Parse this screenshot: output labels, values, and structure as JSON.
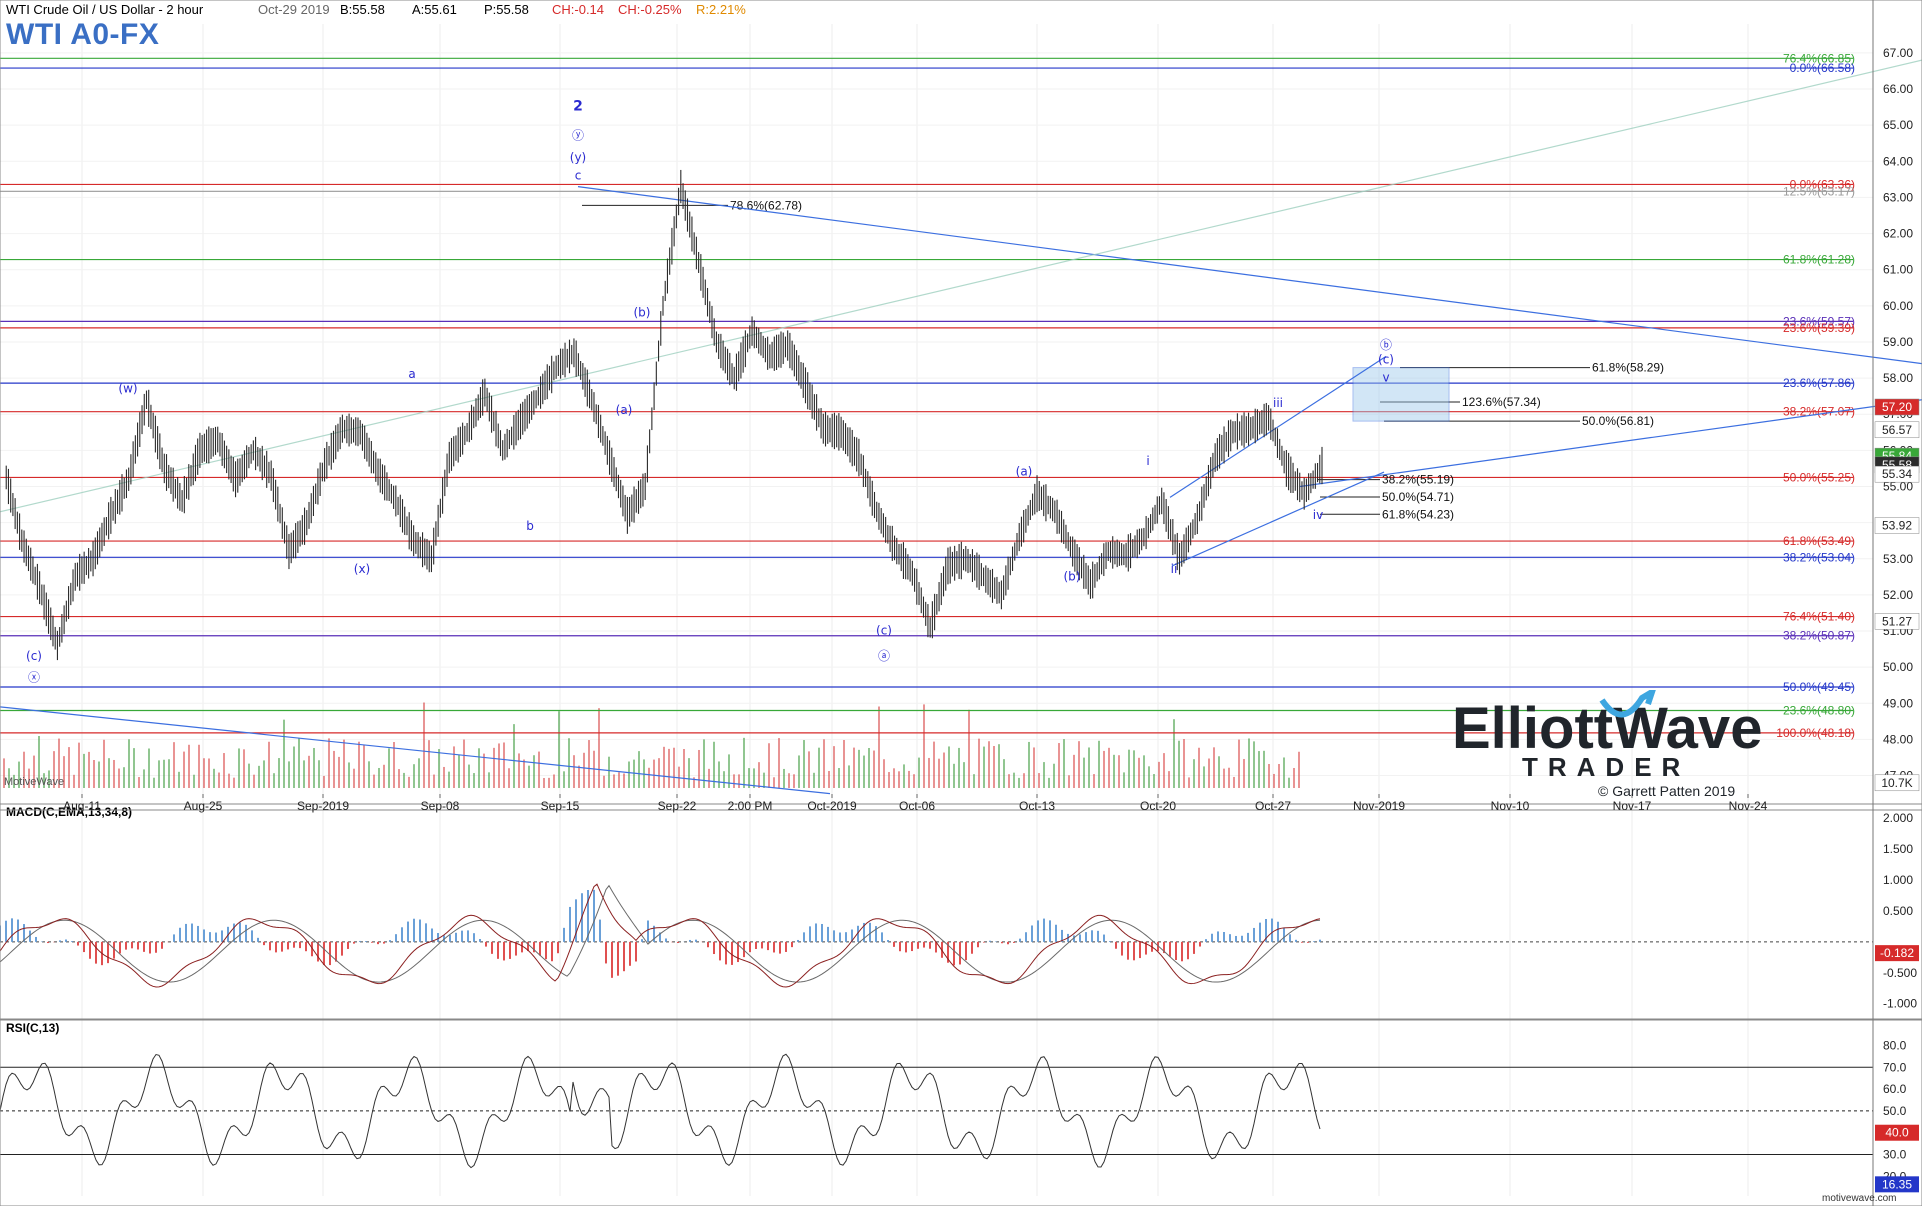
{
  "header": {
    "symbol_desc": "WTI Crude Oil / US Dollar - 2 hour",
    "date": "Oct-29 2019",
    "bid": "B:55.58",
    "ask": "A:55.61",
    "price": "P:55.58",
    "change": "CH:-0.14",
    "change_pct": "CH:-0.25%",
    "range_pct": "R:2.21%",
    "big_title": "WTI A0-FX"
  },
  "watermark": {
    "logo_line1": "ElliottWave",
    "logo_line2": "TRADER",
    "copyright": "© Garrett Patten 2019",
    "motivewave": "MotiveWave",
    "footer": "motivewave.com"
  },
  "colors": {
    "price_bars": "#2b2b2b",
    "fib_red": "#d62a2a",
    "fib_green": "#38a838",
    "fib_purple": "#5a2fb8",
    "fib_blue": "#2437c9",
    "fib_gray": "#9a9a9a",
    "fib_orange": "#f0a020",
    "trend_blue": "#3c6fe0",
    "wave_label": "#2a2ad0",
    "target_box": "#9cc8ec",
    "vol_up": "#3c9a3c",
    "vol_down": "#d84040",
    "macd_hist_pos": "#6aa0d8",
    "macd_hist_neg": "#e05050",
    "macd_line": "#8b2020",
    "signal_line": "#6a6a6a"
  },
  "time_axis": [
    "Aug-11",
    "Aug-25",
    "Sep-2019",
    "Sep-08",
    "Sep-15",
    "Sep-22",
    "2:00 PM",
    "Oct-2019",
    "Oct-06",
    "Oct-13",
    "Oct-20",
    "Oct-27",
    "Nov-2019",
    "Nov-10",
    "Nov-17",
    "Nov-24"
  ],
  "chart_data": [
    {
      "type": "line",
      "title": "WTI Crude Oil / US Dollar - 2 hour",
      "ylim": [
        46.6,
        67.8
      ],
      "ticks": [
        "47.00",
        "48.00",
        "49.00",
        "50.00",
        "51.00",
        "52.00",
        "53.00",
        "54.00",
        "55.00",
        "56.00",
        "57.00",
        "58.00",
        "59.00",
        "60.00",
        "61.00",
        "62.00",
        "63.00",
        "64.00",
        "65.00",
        "66.00",
        "67.00"
      ],
      "price_path": [
        [
          "Aug-06",
          55.5
        ],
        [
          "Aug-07",
          53.5
        ],
        [
          "Aug-08",
          52.2
        ],
        [
          "Aug-08b",
          50.6
        ],
        [
          "Aug-09",
          52.5
        ],
        [
          "Aug-09b",
          53.0
        ],
        [
          "Aug-11",
          54.2
        ],
        [
          "Aug-12",
          55.2
        ],
        [
          "Aug-13",
          57.4
        ],
        [
          "Aug-14",
          55.5
        ],
        [
          "Aug-15",
          54.6
        ],
        [
          "Aug-16",
          56.0
        ],
        [
          "Aug-19",
          56.3
        ],
        [
          "Aug-20",
          55.2
        ],
        [
          "Aug-21",
          56.0
        ],
        [
          "Aug-22",
          55.3
        ],
        [
          "Aug-23",
          53.2
        ],
        [
          "Aug-26",
          54.0
        ],
        [
          "Aug-27",
          55.6
        ],
        [
          "Aug-28",
          56.6
        ],
        [
          "Aug-29",
          56.5
        ],
        [
          "Aug-30",
          55.4
        ],
        [
          "Sep-02",
          54.6
        ],
        [
          "Sep-03",
          53.5
        ],
        [
          "Sep-03b",
          53.0
        ],
        [
          "Sep-04",
          55.8
        ],
        [
          "Sep-05",
          56.5
        ],
        [
          "Sep-06",
          57.6
        ],
        [
          "Sep-07",
          56.0
        ],
        [
          "Sep-08",
          56.8
        ],
        [
          "Sep-09",
          57.5
        ],
        [
          "Sep-10",
          58.3
        ],
        [
          "Sep-11",
          58.7
        ],
        [
          "Sep-11b",
          57.4
        ],
        [
          "Sep-12",
          55.8
        ],
        [
          "Sep-13",
          54.2
        ],
        [
          "Sep-13b",
          55.0
        ],
        [
          "Sep-16",
          60.0
        ],
        [
          "Sep-16b",
          63.3
        ],
        [
          "Sep-17",
          61.2
        ],
        [
          "Sep-17b",
          59.0
        ],
        [
          "Sep-18",
          58.0
        ],
        [
          "Sep-19",
          59.3
        ],
        [
          "Sep-20",
          58.6
        ],
        [
          "Sep-23",
          58.9
        ],
        [
          "Sep-24",
          57.8
        ],
        [
          "Sep-25",
          56.6
        ],
        [
          "Sep-26",
          56.5
        ],
        [
          "Sep-27",
          55.8
        ],
        [
          "Sep-30",
          54.3
        ],
        [
          "Oct-01",
          53.3
        ],
        [
          "Oct-02",
          52.6
        ],
        [
          "Oct-03",
          51.1
        ],
        [
          "Oct-04",
          52.8
        ],
        [
          "Oct-07",
          53.0
        ],
        [
          "Oct-08",
          52.5
        ],
        [
          "Oct-09",
          52.0
        ],
        [
          "Oct-10",
          53.6
        ],
        [
          "Oct-11",
          54.8
        ],
        [
          "Oct-13",
          54.3
        ],
        [
          "Oct-14",
          53.2
        ],
        [
          "Oct-15",
          52.3
        ],
        [
          "Oct-16",
          53.2
        ],
        [
          "Oct-17",
          53.1
        ],
        [
          "Oct-18",
          53.6
        ],
        [
          "Oct-21",
          54.6
        ],
        [
          "Oct-22",
          53.0
        ],
        [
          "Oct-23",
          54.1
        ],
        [
          "Oct-24",
          55.8
        ],
        [
          "Oct-25",
          56.5
        ],
        [
          "Oct-27",
          56.6
        ],
        [
          "Oct-28",
          56.9
        ],
        [
          "Oct-28b",
          55.5
        ],
        [
          "Oct-29",
          54.8
        ],
        [
          "Oct-29b",
          55.58
        ]
      ],
      "right_axis_tags": [
        {
          "label": "57.20",
          "y": 57.2,
          "color": "#d62a2a"
        },
        {
          "label": "56.57",
          "y": 56.57,
          "color": "#ffffff"
        },
        {
          "label": "55.84",
          "y": 55.84,
          "color": "#38a838"
        },
        {
          "label": "55.58",
          "y": 55.6,
          "color": "#2b2b2b"
        },
        {
          "label": "55.34",
          "y": 55.34,
          "color": "#ffffff"
        },
        {
          "label": "53.92",
          "y": 53.92,
          "color": "#ffffff"
        },
        {
          "label": "51.27",
          "y": 51.27,
          "color": "#ffffff"
        },
        {
          "label": "10.7K",
          "y": 46.8,
          "color": "#ffffff"
        }
      ],
      "fib_levels": [
        {
          "label": "76.4%(66.85)",
          "y": 66.85,
          "color": "#38a838"
        },
        {
          "label": "0.0%(66.58)",
          "y": 66.58,
          "color": "#2437c9"
        },
        {
          "label": "0.0%(63.36)",
          "y": 63.36,
          "color": "#d62a2a"
        },
        {
          "label": "12.5%(63.17)",
          "y": 63.17,
          "color": "#9a9a9a"
        },
        {
          "label": "61.8%(61.28)",
          "y": 61.28,
          "color": "#38a838"
        },
        {
          "label": "23.6%(59.57)",
          "y": 59.57,
          "color": "#5a2fb8"
        },
        {
          "label": "23.6%(59.39)",
          "y": 59.39,
          "color": "#d62a2a"
        },
        {
          "label": "23.6%(57.86)",
          "y": 57.86,
          "color": "#2437c9"
        },
        {
          "label": "38.2%(57.07)",
          "y": 57.07,
          "color": "#d62a2a"
        },
        {
          "label": "50.0%(55.25)",
          "y": 55.25,
          "color": "#d62a2a"
        },
        {
          "label": "61.8%(53.49)",
          "y": 53.49,
          "color": "#d62a2a"
        },
        {
          "label": "38.2%(53.04)",
          "y": 53.04,
          "color": "#2437c9"
        },
        {
          "label": "76.4%(51.40)",
          "y": 51.4,
          "color": "#d62a2a"
        },
        {
          "label": "38.2%(50.87)",
          "y": 50.87,
          "color": "#5a2fb8"
        },
        {
          "label": "50.0%(49.45)",
          "y": 49.45,
          "color": "#2437c9"
        },
        {
          "label": "23.6%(48.80)",
          "y": 48.8,
          "color": "#38a838"
        },
        {
          "label": "100.0%(48.18)",
          "y": 48.18,
          "color": "#d62a2a"
        }
      ],
      "inline_fibs": [
        {
          "label": "78.6%(62.78)",
          "y": 62.78
        },
        {
          "label": "61.8%(58.29)",
          "y": 58.29
        },
        {
          "label": "123.6%(57.34)",
          "y": 57.34
        },
        {
          "label": "50.0%(56.81)",
          "y": 56.81
        },
        {
          "label": "38.2%(55.19)",
          "y": 55.19
        },
        {
          "label": "50.0%(54.71)",
          "y": 54.71
        },
        {
          "label": "61.8%(54.23)",
          "y": 54.23
        }
      ],
      "wave_labels": [
        "2",
        "ⓨ",
        "(y)",
        "c",
        "(w)",
        "a",
        "b",
        "(x)",
        "(c)",
        "ⓧ",
        "(b)",
        "(a)",
        "(c)",
        "ⓐ",
        "(a)",
        "(b)",
        "i",
        "ii",
        "iii",
        "iv",
        "v",
        "(c)",
        "ⓑ"
      ]
    },
    {
      "type": "line",
      "title": "MACD(C,EMA,13,34,8)",
      "ylim": [
        -1.15,
        2.1
      ],
      "ticks": [
        "2.000",
        "1.500",
        "1.000",
        "0.500",
        "-0.182",
        "-0.500",
        "-1.000"
      ],
      "current": "-0.182",
      "zero_line": 0
    },
    {
      "type": "line",
      "title": "RSI(C,13)",
      "ylim": [
        11,
        88
      ],
      "ticks": [
        "80.0",
        "70.0",
        "60.0",
        "50.0",
        "40.0",
        "30.0",
        "20.0"
      ],
      "levels": [
        70,
        50,
        30
      ],
      "current_tags": [
        "40.0",
        "16.35"
      ]
    }
  ]
}
